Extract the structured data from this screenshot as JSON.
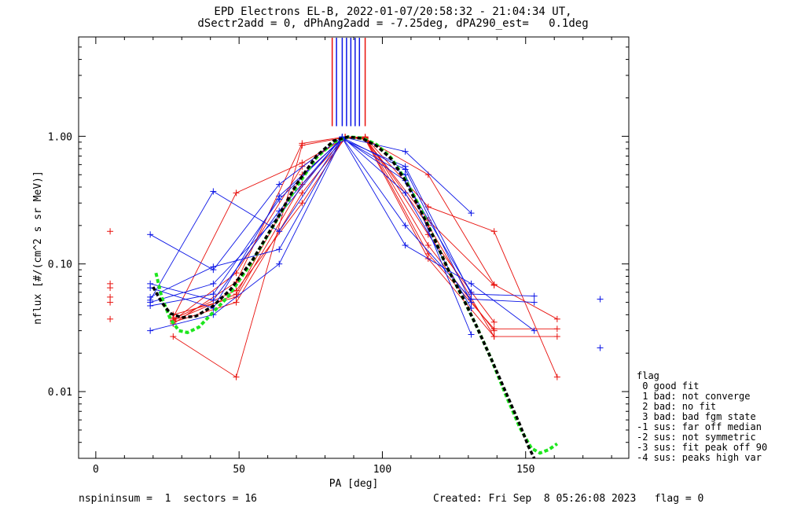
{
  "title_line1": "EPD Electrons EL-B, 2022-01-07/20:58:32 - 21:04:34 UT,",
  "title_line2": "dSectr2add = 0, dPhAng2add = -7.25deg, dPA290_est=   0.1deg",
  "footer_left": "nspininsum =  1  sectors = 16",
  "footer_right": "Created: Fri Sep  8 05:26:08 2023   flag = 0",
  "legend": {
    "title": "flag",
    "items": [
      " 0 good fit",
      " 1 bad: not converge",
      " 2 bad: no fit",
      " 3 bad: bad fgm state",
      "-1 sus: far off median",
      "-2 sus: not symmetric",
      "-3 sus: fit peak off 90",
      "-4 sus: peaks high var"
    ]
  },
  "chart_data": {
    "type": "line",
    "title": "EPD Electrons EL-B, 2022-01-07/20:58:32 - 21:04:34 UT,",
    "xlabel": "PA [deg]",
    "ylabel": "nflux [#/(cm^2 s sr MeV)]",
    "xlim": [
      -6,
      186
    ],
    "ylim": [
      0.003,
      6
    ],
    "ylog": true,
    "xticks": [
      "0",
      "50",
      "100",
      "150"
    ],
    "yticks": [
      "0.01",
      "0.10",
      "1.00"
    ],
    "colors": {
      "red": "#e8100c",
      "blue": "#0a14e6",
      "black": "#000000",
      "green": "#1ee61e"
    },
    "red_series": [
      [
        [
          27,
          0.027
        ],
        [
          49,
          0.013
        ],
        [
          72,
          0.85
        ],
        [
          87,
          0.98
        ],
        [
          94,
          0.95
        ],
        [
          116,
          0.11
        ],
        [
          139,
          0.027
        ],
        [
          161,
          0.027
        ]
      ],
      [
        [
          27,
          0.034
        ],
        [
          49,
          0.072
        ],
        [
          72,
          0.88
        ],
        [
          87,
          0.99
        ],
        [
          94,
          0.97
        ],
        [
          116,
          0.12
        ],
        [
          139,
          0.031
        ],
        [
          161,
          0.031
        ]
      ],
      [
        [
          27,
          0.036
        ],
        [
          49,
          0.085
        ],
        [
          72,
          0.58
        ],
        [
          87,
          0.99
        ],
        [
          94,
          0.98
        ],
        [
          116,
          0.28
        ],
        [
          139,
          0.18
        ],
        [
          161,
          0.013
        ]
      ],
      [
        [
          27,
          0.038
        ],
        [
          49,
          0.36
        ],
        [
          72,
          0.62
        ],
        [
          87,
          0.97
        ],
        [
          94,
          0.96
        ],
        [
          116,
          0.5
        ],
        [
          139,
          0.069
        ],
        [
          161,
          0.037
        ]
      ],
      [
        [
          27,
          0.04
        ],
        [
          49,
          0.055
        ],
        [
          72,
          0.42
        ],
        [
          87,
          0.97
        ],
        [
          94,
          0.96
        ],
        [
          116,
          0.22
        ],
        [
          139,
          0.068
        ]
      ],
      [
        [
          27,
          0.037
        ],
        [
          49,
          0.062
        ],
        [
          72,
          0.3
        ],
        [
          87,
          0.98
        ],
        [
          94,
          0.99
        ],
        [
          116,
          0.17
        ],
        [
          139,
          0.035
        ]
      ],
      [
        [
          27,
          0.035
        ],
        [
          49,
          0.05
        ],
        [
          72,
          0.36
        ],
        [
          87,
          0.96
        ],
        [
          94,
          0.98
        ],
        [
          116,
          0.14
        ],
        [
          139,
          0.03
        ]
      ],
      [
        [
          27,
          0.036
        ],
        [
          49,
          0.058
        ],
        [
          72,
          0.5
        ],
        [
          87,
          0.99
        ],
        [
          94,
          0.97
        ],
        [
          116,
          0.2
        ],
        [
          139,
          0.027
        ]
      ]
    ],
    "red_isolated": [
      [
        5,
        0.18
      ],
      [
        5,
        0.07
      ],
      [
        5,
        0.065
      ],
      [
        5,
        0.055
      ],
      [
        5,
        0.05
      ],
      [
        5,
        0.037
      ]
    ],
    "blue_series": [
      [
        [
          19,
          0.17
        ],
        [
          41,
          0.09
        ],
        [
          64,
          0.42
        ],
        [
          86,
          0.99
        ],
        [
          108,
          0.76
        ],
        [
          131,
          0.25
        ]
      ],
      [
        [
          19,
          0.065
        ],
        [
          41,
          0.045
        ],
        [
          64,
          0.34
        ],
        [
          86,
          0.95
        ],
        [
          108,
          0.58
        ],
        [
          131,
          0.058
        ],
        [
          153,
          0.056
        ]
      ],
      [
        [
          19,
          0.07
        ],
        [
          41,
          0.052
        ],
        [
          64,
          0.26
        ],
        [
          86,
          0.98
        ],
        [
          108,
          0.2
        ],
        [
          131,
          0.053
        ],
        [
          153,
          0.05
        ]
      ],
      [
        [
          19,
          0.055
        ],
        [
          41,
          0.095
        ],
        [
          64,
          0.13
        ],
        [
          86,
          0.97
        ],
        [
          108,
          0.14
        ],
        [
          131,
          0.07
        ],
        [
          153,
          0.03
        ]
      ],
      [
        [
          19,
          0.03
        ],
        [
          41,
          0.04
        ],
        [
          64,
          0.1
        ],
        [
          86,
          0.96
        ],
        [
          108,
          0.5
        ],
        [
          131,
          0.028
        ]
      ],
      [
        [
          19,
          0.05
        ],
        [
          41,
          0.07
        ],
        [
          64,
          0.24
        ],
        [
          86,
          0.99
        ],
        [
          108,
          0.36
        ],
        [
          131,
          0.045
        ]
      ],
      [
        [
          19,
          0.047
        ],
        [
          41,
          0.058
        ],
        [
          64,
          0.32
        ],
        [
          86,
          0.97
        ],
        [
          108,
          0.45
        ],
        [
          131,
          0.06
        ]
      ],
      [
        [
          19,
          0.052
        ],
        [
          41,
          0.37
        ],
        [
          64,
          0.18
        ],
        [
          86,
          0.98
        ],
        [
          108,
          0.55
        ],
        [
          131,
          0.05
        ]
      ]
    ],
    "blue_isolated": [
      [
        176,
        0.053
      ],
      [
        176,
        0.022
      ]
    ],
    "black_fit": [
      [
        20,
        0.066
      ],
      [
        23,
        0.05
      ],
      [
        26,
        0.041
      ],
      [
        30,
        0.038
      ],
      [
        35,
        0.039
      ],
      [
        41,
        0.047
      ],
      [
        47,
        0.063
      ],
      [
        55,
        0.11
      ],
      [
        63,
        0.22
      ],
      [
        70,
        0.42
      ],
      [
        77,
        0.7
      ],
      [
        83,
        0.92
      ],
      [
        88,
        0.99
      ],
      [
        93,
        0.96
      ],
      [
        98,
        0.84
      ],
      [
        103,
        0.67
      ],
      [
        108,
        0.45
      ],
      [
        113,
        0.27
      ],
      [
        118,
        0.16
      ],
      [
        123,
        0.09
      ],
      [
        128,
        0.055
      ],
      [
        133,
        0.032
      ],
      [
        138,
        0.018
      ],
      [
        143,
        0.01
      ],
      [
        148,
        0.0055
      ],
      [
        151,
        0.0037
      ],
      [
        153,
        0.003
      ]
    ],
    "green_fit": [
      [
        21,
        0.085
      ],
      [
        23,
        0.055
      ],
      [
        26,
        0.037
      ],
      [
        29,
        0.03
      ],
      [
        32,
        0.029
      ],
      [
        36,
        0.032
      ],
      [
        41,
        0.042
      ],
      [
        46,
        0.055
      ],
      [
        54,
        0.1
      ],
      [
        62,
        0.2
      ],
      [
        70,
        0.4
      ],
      [
        77,
        0.68
      ],
      [
        83,
        0.9
      ],
      [
        88,
        0.99
      ],
      [
        93,
        0.97
      ],
      [
        98,
        0.86
      ],
      [
        103,
        0.68
      ],
      [
        108,
        0.46
      ],
      [
        113,
        0.28
      ],
      [
        118,
        0.16
      ],
      [
        123,
        0.09
      ],
      [
        128,
        0.055
      ],
      [
        133,
        0.032
      ],
      [
        138,
        0.018
      ],
      [
        143,
        0.0095
      ],
      [
        148,
        0.0052
      ],
      [
        152,
        0.0036
      ],
      [
        155,
        0.0033
      ],
      [
        158,
        0.0035
      ],
      [
        161,
        0.0039
      ]
    ],
    "blue_verticals": [
      84,
      86,
      87.5,
      89,
      90.5,
      92
    ],
    "red_verticals": [
      82.5,
      94
    ]
  }
}
